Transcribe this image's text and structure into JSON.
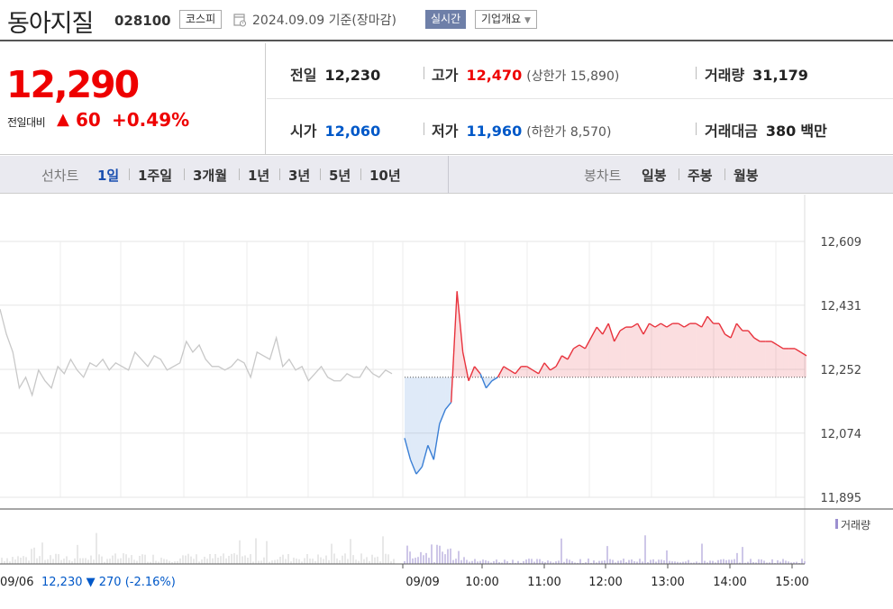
{
  "header": {
    "company_name": "동아지질",
    "code": "028100",
    "market": "코스피",
    "date": "2024.09.09",
    "date_suffix": "기준(장마감)",
    "realtime_label": "실시간",
    "overview_label": "기업개요"
  },
  "quote": {
    "price": "12,290",
    "change_label": "전일대비",
    "change_arrow": "▲",
    "change": "60",
    "change_rate": "+0.49%",
    "prev_close": {
      "label": "전일",
      "value": "12,230"
    },
    "high": {
      "label": "고가",
      "value": "12,470",
      "limit_label": "상한가",
      "limit_value": "15,890"
    },
    "volume": {
      "label": "거래량",
      "value": "31,179"
    },
    "open": {
      "label": "시가",
      "value": "12,060"
    },
    "low": {
      "label": "저가",
      "value": "11,960",
      "limit_label": "하한가",
      "limit_value": "8,570"
    },
    "amount": {
      "label": "거래대금",
      "value": "380",
      "unit": "백만"
    }
  },
  "tabs": {
    "line_chart_label": "선차트",
    "line_periods": [
      "1일",
      "1주일",
      "3개월",
      "1년",
      "3년",
      "5년",
      "10년"
    ],
    "active_period": "1일",
    "candle_chart_label": "봉차트",
    "candle_periods": [
      "일봉",
      "주봉",
      "월봉"
    ]
  },
  "chart_data": {
    "type": "line",
    "ylim": [
      11895,
      12609
    ],
    "y_ticks": [
      12609,
      12431,
      12252,
      12074,
      11895
    ],
    "y_tick_labels": [
      "12,609",
      "12,431",
      "12,252",
      "12,074",
      "11,895"
    ],
    "x_tick_labels": [
      "09/09",
      "10:00",
      "11:00",
      "12:00",
      "13:00",
      "14:00",
      "15:00"
    ],
    "baseline": 12230,
    "colors": {
      "up": "#e8323c",
      "down": "#3a7fd5",
      "prev_day": "#c8c8c8",
      "volume": "#9c8fd0"
    },
    "prev_day_series": [
      12420,
      12350,
      12300,
      12200,
      12230,
      12180,
      12250,
      12220,
      12200,
      12260,
      12240,
      12280,
      12250,
      12230,
      12270,
      12260,
      12280,
      12250,
      12270,
      12260,
      12250,
      12300,
      12280,
      12260,
      12290,
      12280,
      12250,
      12260,
      12270,
      12330,
      12300,
      12320,
      12280,
      12260,
      12260,
      12250,
      12260,
      12280,
      12270,
      12230,
      12300,
      12290,
      12280,
      12340,
      12260,
      12280,
      12250,
      12260,
      12220,
      12240,
      12260,
      12230,
      12220,
      12220,
      12240,
      12230,
      12230,
      12260,
      12240,
      12230,
      12250,
      12240
    ],
    "today_series": [
      12060,
      12000,
      11960,
      11980,
      12040,
      12000,
      12100,
      12140,
      12160,
      12470,
      12300,
      12220,
      12260,
      12240,
      12200,
      12220,
      12230,
      12260,
      12250,
      12240,
      12260,
      12260,
      12250,
      12240,
      12270,
      12250,
      12260,
      12290,
      12280,
      12310,
      12320,
      12310,
      12340,
      12370,
      12350,
      12380,
      12330,
      12360,
      12370,
      12370,
      12380,
      12350,
      12380,
      12370,
      12380,
      12370,
      12380,
      12380,
      12370,
      12380,
      12380,
      12370,
      12400,
      12380,
      12380,
      12350,
      12340,
      12380,
      12360,
      12360,
      12340,
      12330,
      12330,
      12330,
      12320,
      12310,
      12310,
      12310,
      12300,
      12290
    ],
    "volume_label": "거래량",
    "prev_day_footer": {
      "date": "09/06",
      "price": "12,230",
      "arrow": "▼",
      "change": "270",
      "rate": "(-2.16%)"
    }
  }
}
